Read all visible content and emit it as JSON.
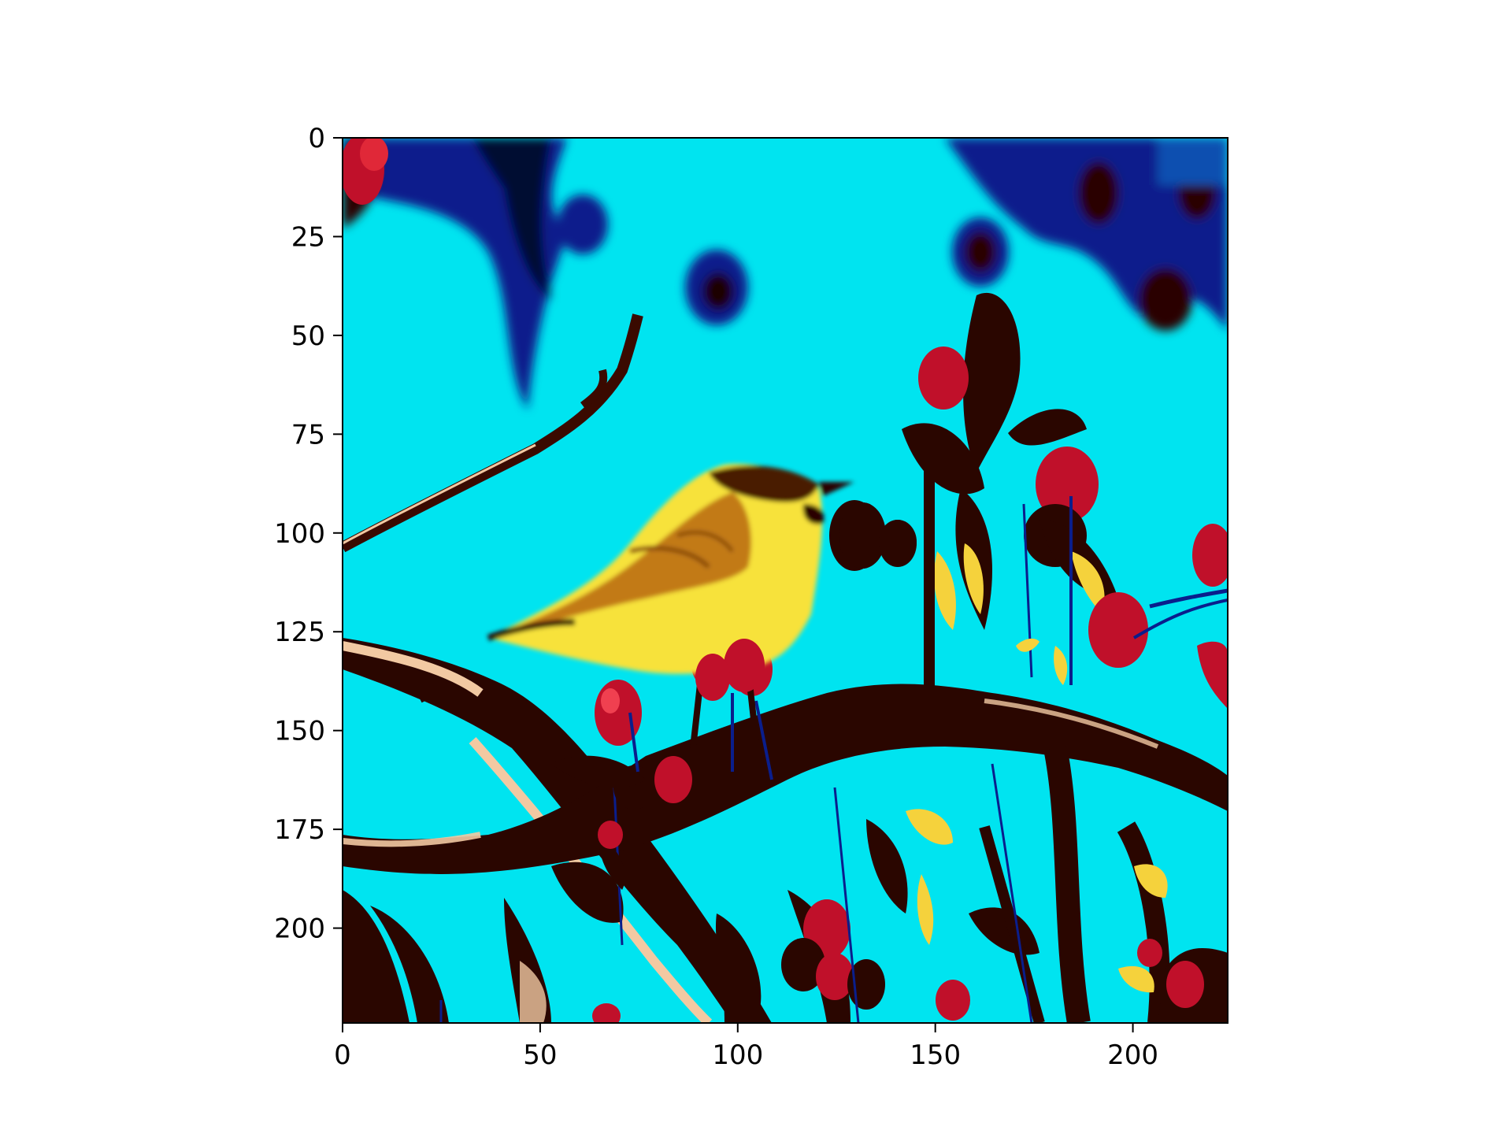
{
  "image": {
    "subject": "bird-on-branch",
    "palette": {
      "sky": "#00e4f0",
      "dark_blue": "#0a1e8c",
      "branch_dark": "#2a0600",
      "bark_light": "#f2c9a2",
      "berry_red": "#d0102a",
      "bird_yellow": "#f7e23a",
      "bird_orange": "#c27a12",
      "leaf_yellow": "#f5d23c"
    }
  },
  "axes": {
    "x_ticks": [
      0,
      50,
      100,
      150,
      200
    ],
    "y_ticks": [
      0,
      25,
      50,
      75,
      100,
      125,
      150,
      175,
      200
    ],
    "x_range": [
      0,
      224
    ],
    "y_range": [
      0,
      224
    ]
  }
}
